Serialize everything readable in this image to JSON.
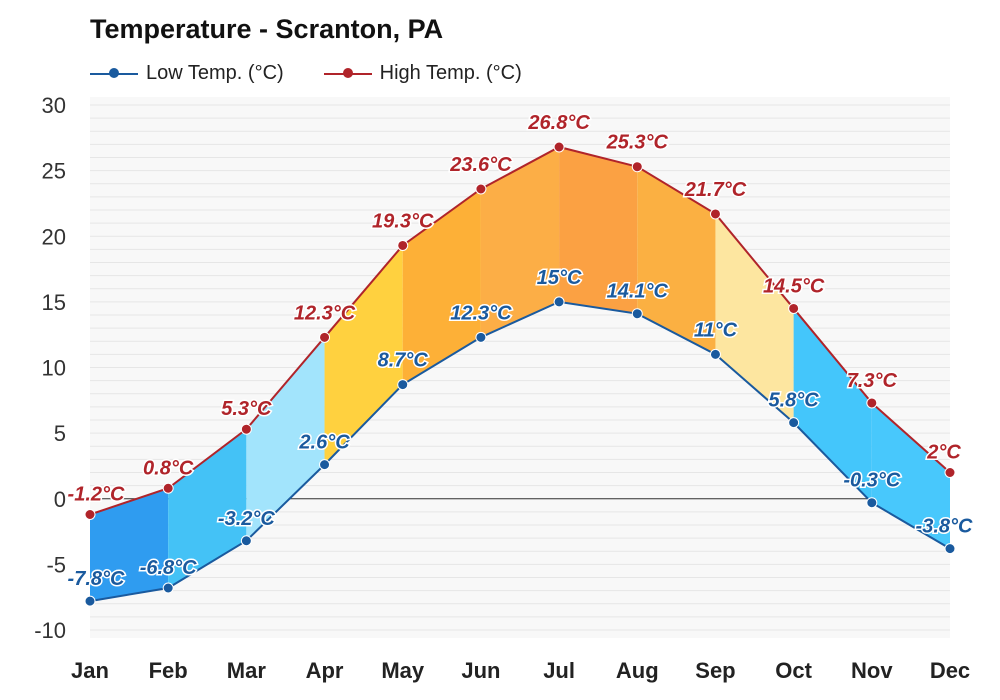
{
  "chart_data": {
    "type": "line",
    "title": "Temperature - Scranton, PA",
    "categories": [
      "Jan",
      "Feb",
      "Mar",
      "Apr",
      "May",
      "Jun",
      "Jul",
      "Aug",
      "Sep",
      "Oct",
      "Nov",
      "Dec"
    ],
    "series": [
      {
        "name": "Low Temp. (°C)",
        "color": "#1a5a9e",
        "values": [
          -7.8,
          -6.8,
          -3.2,
          2.6,
          8.7,
          12.3,
          15,
          14.1,
          11,
          5.8,
          -0.3,
          -3.8
        ],
        "labels": [
          "-7.8°C",
          "-6.8°C",
          "-3.2°C",
          "2.6°C",
          "8.7°C",
          "12.3°C",
          "15°C",
          "14.1°C",
          "11°C",
          "5.8°C",
          "-0.3°C",
          "-3.8°C"
        ]
      },
      {
        "name": "High Temp. (°C)",
        "color": "#b0242a",
        "values": [
          -1.2,
          0.8,
          5.3,
          12.3,
          19.3,
          23.6,
          26.8,
          25.3,
          21.7,
          14.5,
          7.3,
          2
        ],
        "labels": [
          "-1.2°C",
          "0.8°C",
          "5.3°C",
          "12.3°C",
          "19.3°C",
          "23.6°C",
          "26.8°C",
          "25.3°C",
          "21.7°C",
          "14.5°C",
          "7.3°C",
          "2°C"
        ]
      }
    ],
    "band_colors": [
      "#2f9cf0",
      "#44c2f6",
      "#a2e4fc",
      "#ffd13f",
      "#fdb037",
      "#fcae46",
      "#fba143",
      "#fbb042",
      "#fde6a0",
      "#44c6fb",
      "#48c8fc",
      "#44bcf9"
    ],
    "ylim": [
      -10,
      30
    ],
    "yticks": [
      30,
      25,
      20,
      15,
      10,
      5,
      0,
      -5,
      -10
    ],
    "xlabel": "",
    "ylabel": "",
    "grid": true,
    "legend": "top-left"
  }
}
